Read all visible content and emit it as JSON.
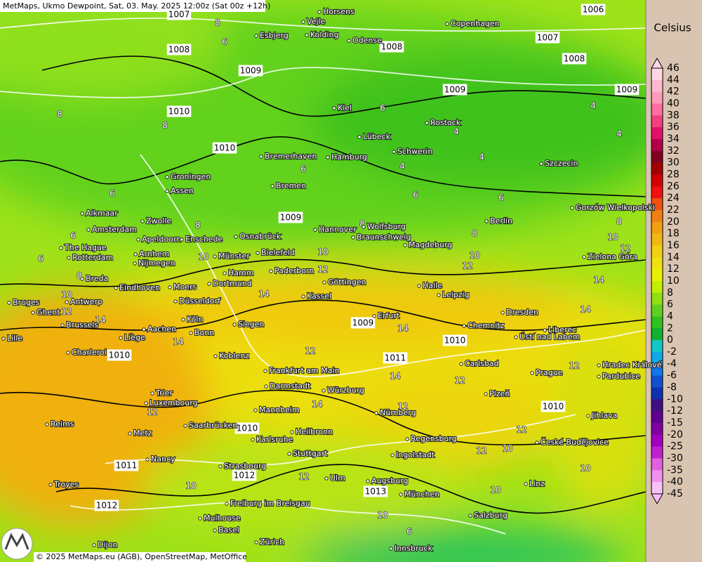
{
  "header": {
    "title": "MetMaps, Ukmo Dewpoint, Sat, 03. May. 2025 12:00z (Sat 00z +12h)"
  },
  "legend": {
    "unit": "Celsius",
    "labels": [
      46,
      44,
      42,
      40,
      38,
      36,
      34,
      32,
      30,
      28,
      26,
      24,
      22,
      20,
      18,
      16,
      14,
      12,
      10,
      8,
      6,
      4,
      2,
      0,
      -2,
      -4,
      -6,
      -8,
      -10,
      -12,
      -15,
      -20,
      -25,
      -30,
      -35,
      -40,
      -45
    ]
  },
  "cities": [
    "Horsens",
    "Vejle",
    "Kolding",
    "Esbjerg",
    "Odense",
    "Copenhagen",
    "Kiel",
    "Lübeck",
    "Rostock",
    "Schwerin",
    "Hamburg",
    "Bremerhaven",
    "Szczecin",
    "Groningen",
    "Assen",
    "Bremen",
    "Alkmaar",
    "Zwolle",
    "Amsterdam",
    "Apeldoorn",
    "Enschede",
    "Osnabrück",
    "Hannover",
    "Wolfsburg",
    "Braunschweig",
    "Magdeburg",
    "Berlin",
    "Gorzów Wielkopolski",
    "The Hague",
    "Rotterdam",
    "Arnhem",
    "Nijmegen",
    "Münster",
    "Bielefeld",
    "Zielona Góra",
    "Hamm",
    "Paderborn",
    "Breda",
    "Dortmund",
    "Göttingen",
    "Eindhoven",
    "Moers",
    "Halle",
    "Leipzig",
    "Kassel",
    "Bruges",
    "Antwerp",
    "Düsseldorf",
    "Ghent",
    "Dresden",
    "Erfurt",
    "Köln",
    "Brussels",
    "Siegen",
    "Chemnitz",
    "Liberec",
    "Aachen",
    "Bonn",
    "Ústí nad Labem",
    "Lille",
    "Liège",
    "Charleroi",
    "Koblenz",
    "Frankfurt am Main",
    "Carlsbad",
    "Hradec Králové",
    "Prague",
    "Pardubice",
    "Darmstadt",
    "Würzburg",
    "Trier",
    "Plzeň",
    "Luxembourg",
    "Mannheim",
    "Nürnberg",
    "Jihlava",
    "Reims",
    "Saarbrücken",
    "Heilbronn",
    "Metz",
    "Karlsruhe",
    "Regensburg",
    "České Budějovice",
    "Stuttgart",
    "Ingolstadt",
    "Nancy",
    "Strasbourg",
    "Ulm",
    "Augsburg",
    "Troyes",
    "Linz",
    "München",
    "Freiburg im Breisgau",
    "Salzburg",
    "Mulhouse",
    "Basel",
    "Zürich",
    "Dijon",
    "Innsbruck"
  ],
  "isobar_labels": [
    1007,
    1006,
    1008,
    1007,
    1008,
    1009,
    1009,
    1009,
    1010,
    1010,
    1009,
    1009,
    1010,
    1011,
    1010,
    1010,
    1010,
    1011,
    1012,
    1013,
    1012,
    1008
  ],
  "dewpoint_labels": [
    8,
    6,
    8,
    8,
    6,
    4,
    4,
    4,
    4,
    4,
    6,
    6,
    6,
    6,
    6,
    6,
    8,
    8,
    8,
    8,
    10,
    10,
    10,
    10,
    12,
    12,
    12,
    14,
    14,
    14,
    14,
    14,
    14,
    12,
    14,
    12,
    12,
    12,
    12,
    12,
    10,
    10,
    10,
    12,
    10,
    10,
    6,
    10,
    12,
    12,
    14,
    8
  ],
  "footer": {
    "copyright": "© 2025 MetMaps.eu (AGB), OpenStreetMap, MetOffice"
  }
}
